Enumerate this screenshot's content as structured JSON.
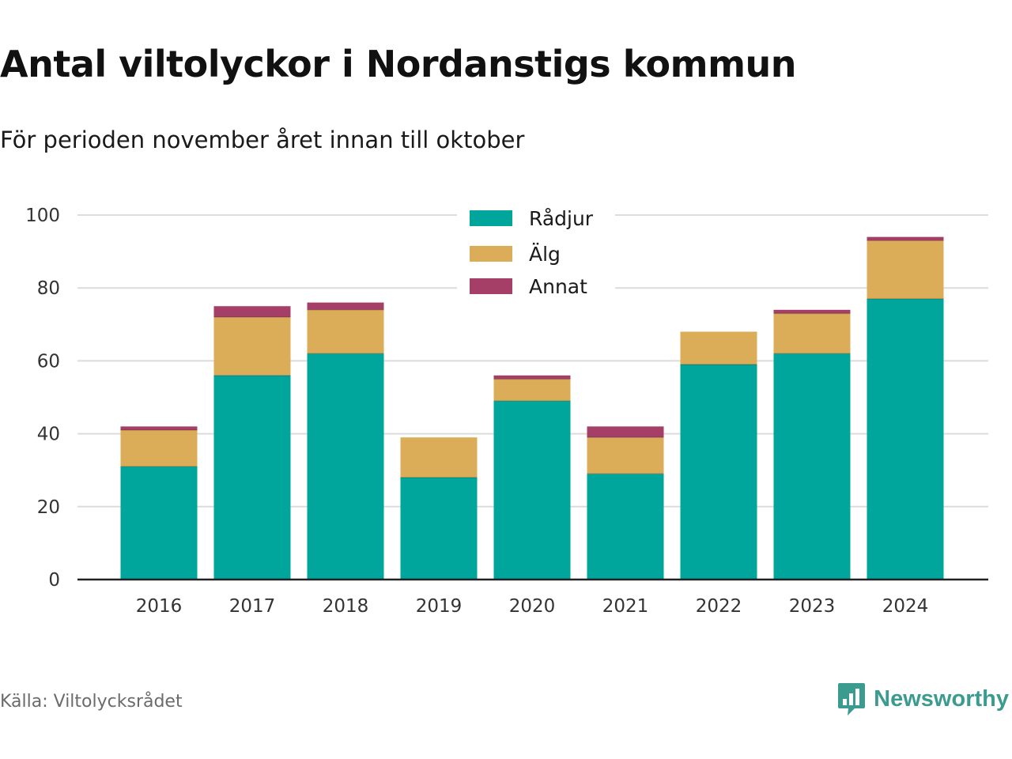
{
  "header": {
    "title": "Antal viltolyckor i Nordanstigs kommun",
    "subtitle": "För perioden november året innan till oktober"
  },
  "footer": {
    "source": "Källa: Viltolycksrådet",
    "brand": "Newsworthy",
    "brand_icon": "bar-chart-speech-bubble-icon",
    "brand_color": "#3a9b8e"
  },
  "chart_data": {
    "type": "bar",
    "stacked": true,
    "categories": [
      "2016",
      "2017",
      "2018",
      "2019",
      "2020",
      "2021",
      "2022",
      "2023",
      "2024"
    ],
    "series": [
      {
        "name": "Rådjur",
        "color": "#00a59b",
        "values": [
          31,
          56,
          62,
          28,
          49,
          29,
          59,
          62,
          77
        ]
      },
      {
        "name": "Älg",
        "color": "#dcad58",
        "values": [
          10,
          16,
          12,
          11,
          6,
          10,
          9,
          11,
          16
        ]
      },
      {
        "name": "Annat",
        "color": "#a63f67",
        "values": [
          1,
          3,
          2,
          0,
          1,
          3,
          0,
          1,
          1
        ]
      }
    ],
    "ylim": [
      0,
      100
    ],
    "yticks": [
      0,
      20,
      40,
      60,
      80,
      100
    ],
    "grid": true,
    "legend": "top-center"
  }
}
